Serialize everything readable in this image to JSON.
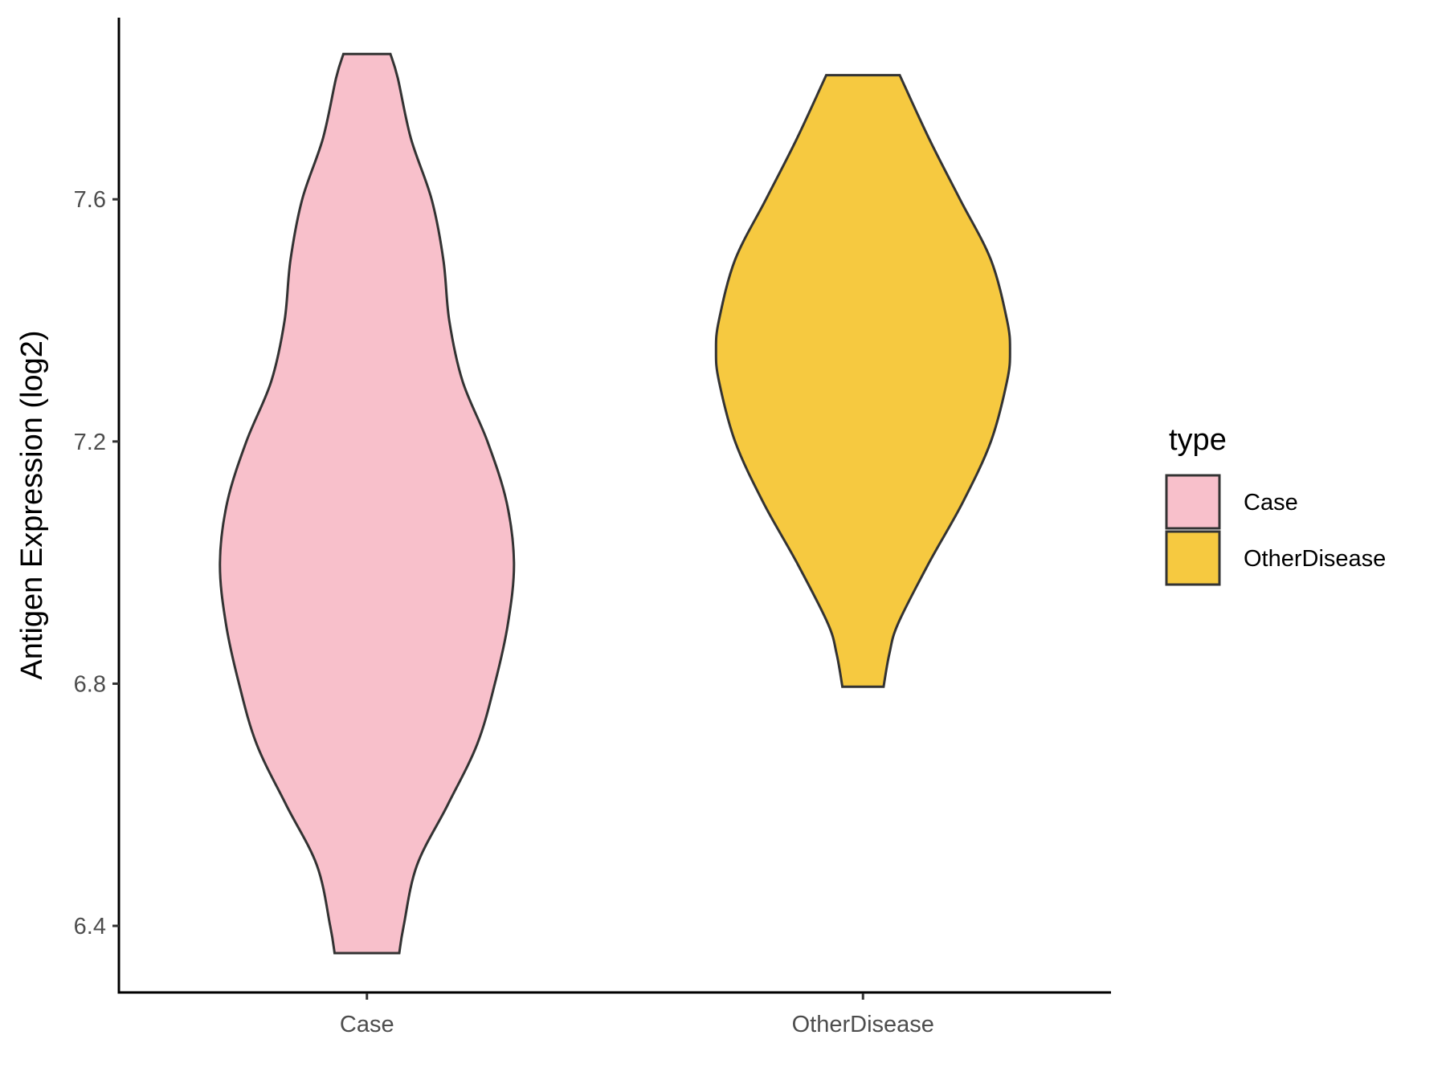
{
  "chart_data": {
    "type": "violin",
    "xlabel": "",
    "ylabel": "Antigen Expression (log2)",
    "categories": [
      "Case",
      "OtherDisease"
    ],
    "ylim": [
      6.29,
      7.9
    ],
    "yticks": [
      "6.4",
      "6.8",
      "7.2",
      "7.6"
    ],
    "legend": {
      "title": "type",
      "position": "right"
    },
    "grid": false,
    "series": [
      {
        "name": "Case",
        "color": "#F8C0CB",
        "min": 6.355,
        "max": 7.84,
        "density": [
          [
            6.355,
            0.22
          ],
          [
            6.4,
            0.25
          ],
          [
            6.5,
            0.34
          ],
          [
            6.6,
            0.55
          ],
          [
            6.7,
            0.75
          ],
          [
            6.8,
            0.87
          ],
          [
            6.9,
            0.96
          ],
          [
            7.0,
            1.0
          ],
          [
            7.1,
            0.95
          ],
          [
            7.2,
            0.82
          ],
          [
            7.3,
            0.65
          ],
          [
            7.4,
            0.56
          ],
          [
            7.5,
            0.52
          ],
          [
            7.6,
            0.44
          ],
          [
            7.7,
            0.3
          ],
          [
            7.8,
            0.21
          ],
          [
            7.84,
            0.16
          ]
        ]
      },
      {
        "name": "OtherDisease",
        "color": "#F6C940",
        "min": 6.795,
        "max": 7.805,
        "density": [
          [
            6.795,
            0.14
          ],
          [
            6.85,
            0.18
          ],
          [
            6.9,
            0.24
          ],
          [
            7.0,
            0.45
          ],
          [
            7.1,
            0.68
          ],
          [
            7.2,
            0.87
          ],
          [
            7.3,
            0.98
          ],
          [
            7.35,
            1.0
          ],
          [
            7.4,
            0.98
          ],
          [
            7.5,
            0.87
          ],
          [
            7.6,
            0.66
          ],
          [
            7.7,
            0.45
          ],
          [
            7.805,
            0.25
          ]
        ]
      }
    ]
  }
}
